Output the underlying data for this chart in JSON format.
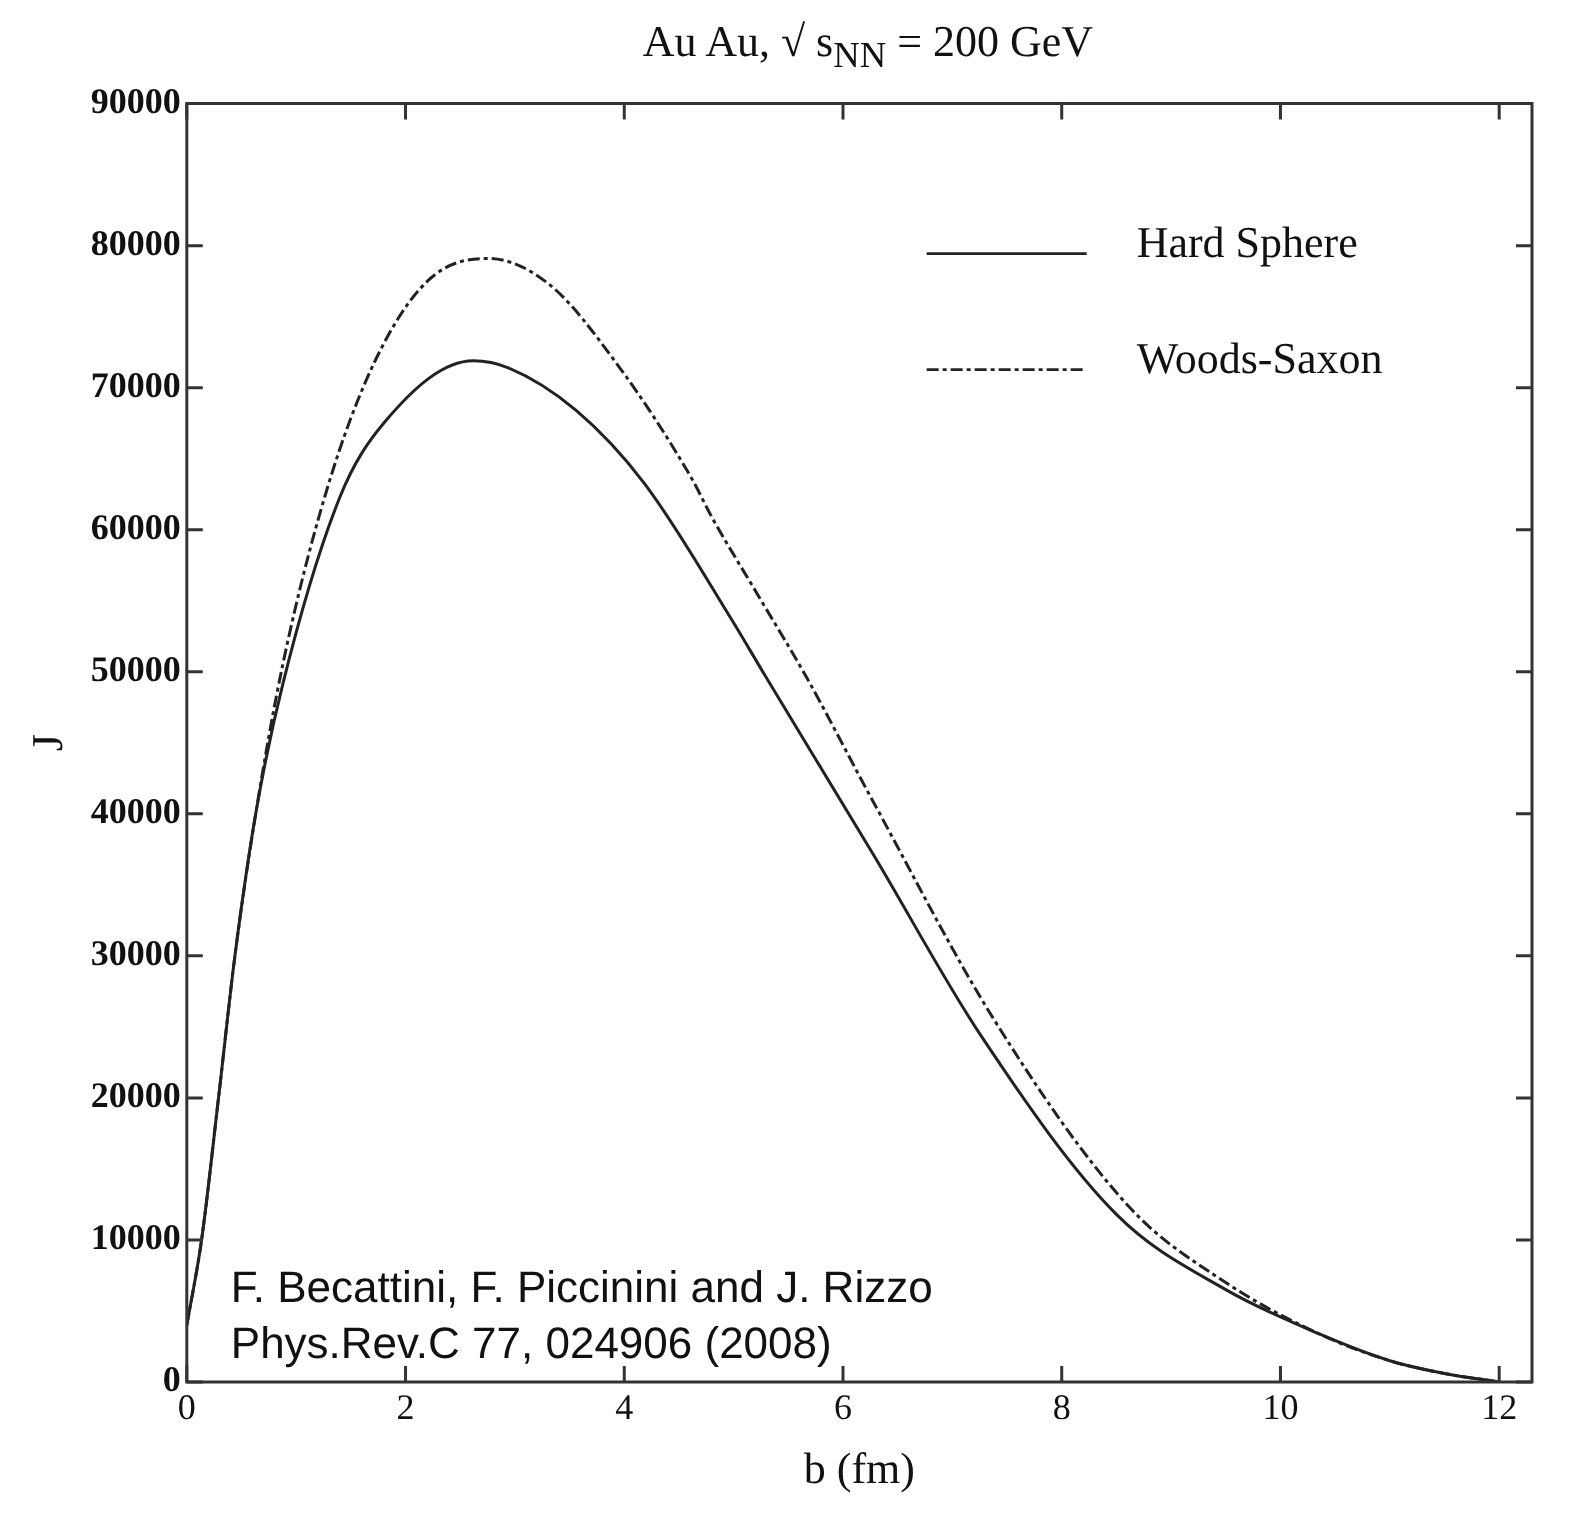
{
  "chart_data": {
    "type": "line",
    "title": "Au Au, √ s$_{NN}$ =  200 GeV",
    "xlabel": "b (fm)",
    "ylabel": "J",
    "xlim": [
      0,
      12.3
    ],
    "xticks": [
      0,
      2,
      4,
      6,
      8,
      10,
      12
    ],
    "ylim": [
      0,
      90000
    ],
    "yticks": [
      0,
      10000,
      20000,
      30000,
      40000,
      50000,
      60000,
      70000,
      80000,
      90000
    ],
    "grid": false,
    "legend": "top right",
    "annotations": [
      "F. Becattini, F. Piccinini and J. Rizzo\nPhys.Rev.C 77, 024906 (2008)"
    ],
    "series": [
      {
        "name": "Hard Sphere",
        "color": "#222222",
        "line_style": "solid",
        "x": [
          0,
          0.135,
          0.29,
          0.44,
          0.63,
          0.88,
          1.4,
          1.8,
          2.62,
          2.94,
          3.56,
          4.18,
          4.98,
          5.29,
          6.28,
          7.26,
          8.5,
          9.5,
          10.35,
          11,
          11.5,
          12
        ],
        "values": [
          4000,
          10000,
          20000,
          30000,
          40000,
          49200,
          62300,
          67500,
          71900,
          71400,
          68400,
          63300,
          53700,
          49700,
          37100,
          24400,
          11800,
          6500,
          3400,
          1500,
          600,
          0
        ]
      },
      {
        "name": "Woods-Saxon",
        "color": "#222222",
        "line_style": "dashed",
        "x": [
          0,
          0.135,
          0.29,
          0.44,
          0.63,
          0.88,
          1.28,
          1.71,
          2.2,
          2.75,
          3.31,
          3.93,
          4.61,
          4.8,
          5.23,
          5.66,
          6.28,
          7.39,
          8.62,
          9.5,
          10.35,
          11,
          11.5,
          12
        ],
        "values": [
          4000,
          10000,
          20000,
          30000,
          40000,
          50600,
          62800,
          71700,
          77500,
          79100,
          77300,
          71700,
          63700,
          60900,
          55300,
          49700,
          40800,
          25400,
          12300,
          7000,
          3400,
          1500,
          600,
          0
        ]
      }
    ]
  }
}
